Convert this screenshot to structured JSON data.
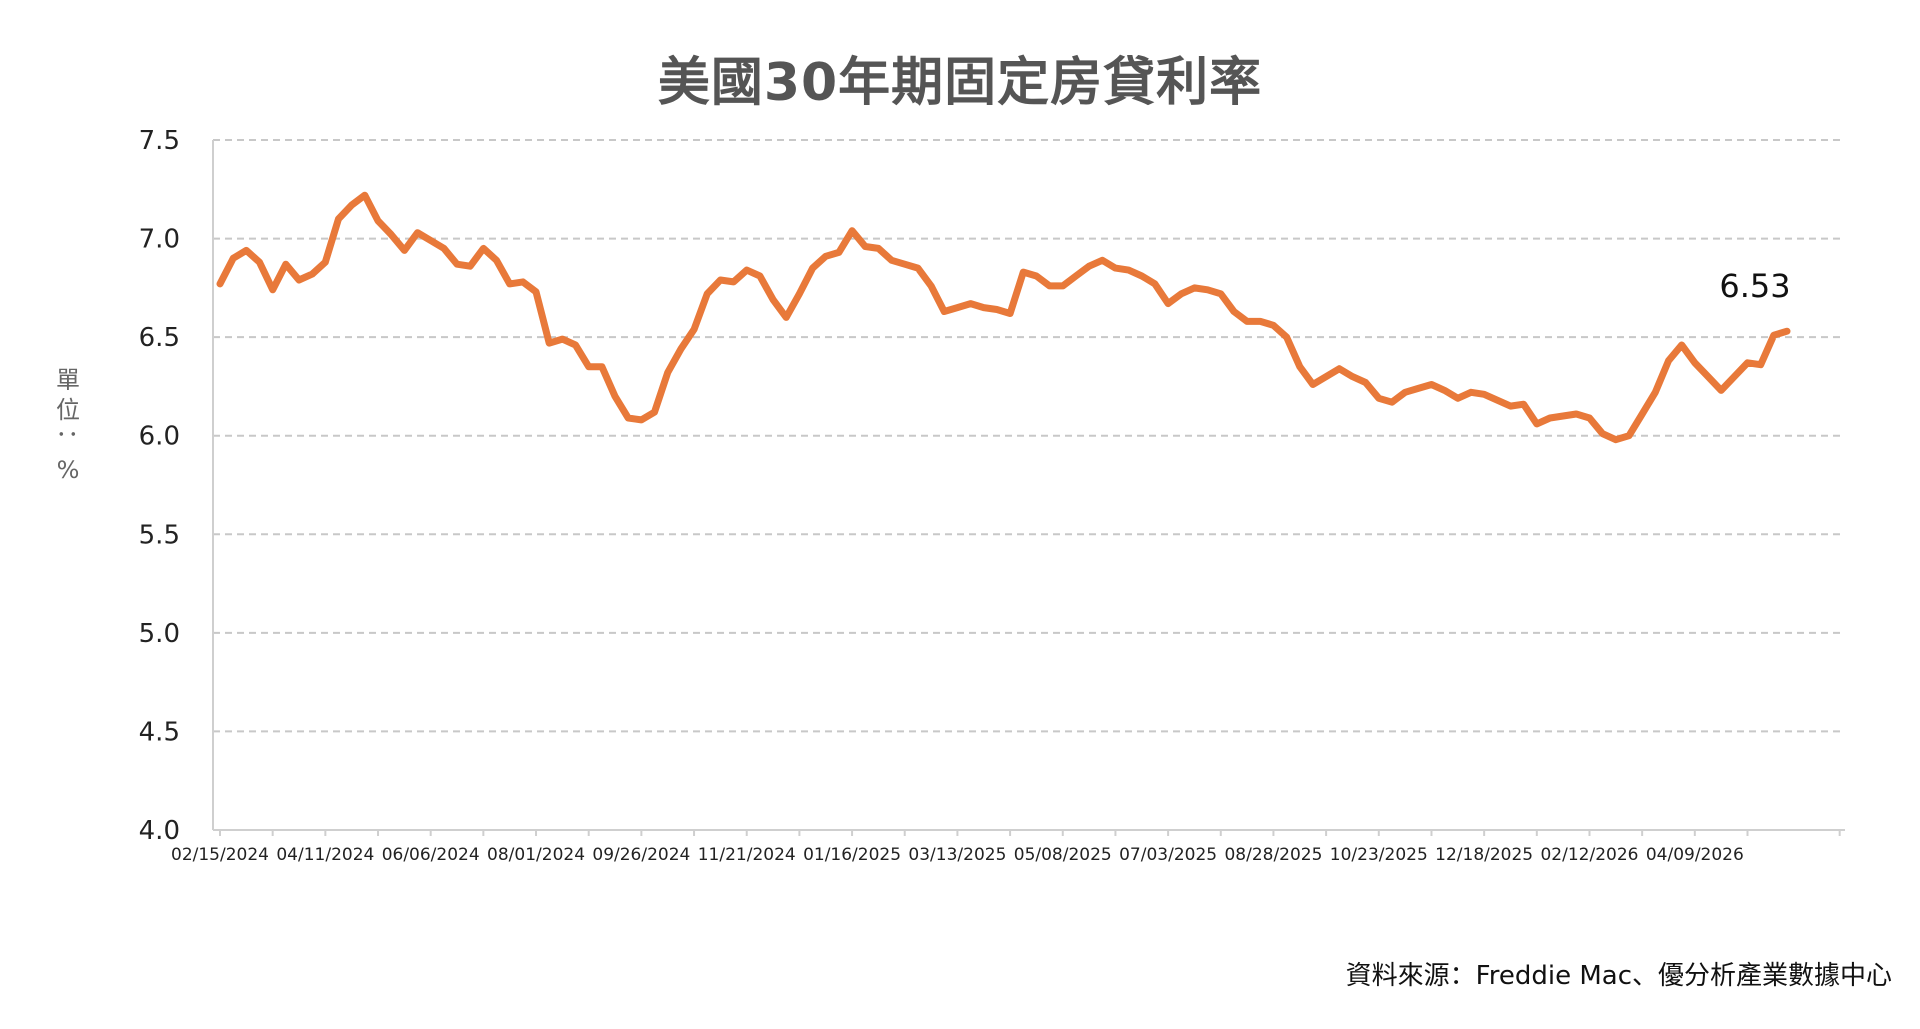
{
  "chart_data": {
    "type": "line",
    "title": "美國30年期固定房貸利率",
    "ylabel": "單位：%",
    "source": "資料來源：Freddie Mac、優分析產業數據中心",
    "ylim": [
      4.0,
      7.5
    ],
    "y_ticks": [
      "7.5",
      "7.0",
      "6.5",
      "6.0",
      "5.5",
      "5.0",
      "4.5",
      "4.0"
    ],
    "x_tick_labels": [
      "02/15/2024",
      "04/11/2024",
      "06/06/2024",
      "08/01/2024",
      "09/26/2024",
      "11/21/2024",
      "01/16/2025",
      "03/13/2025",
      "05/08/2025",
      "07/03/2025",
      "08/28/2025",
      "10/23/2025",
      "12/18/2025",
      "02/12/2026",
      "04/09/2026"
    ],
    "grid": true,
    "last_value_label": "6.53",
    "series": [
      {
        "color": "#E8793A",
        "values": [
          6.77,
          6.9,
          6.94,
          6.88,
          6.74,
          6.87,
          6.79,
          6.82,
          6.88,
          7.1,
          7.17,
          7.22,
          7.09,
          7.02,
          6.94,
          7.03,
          6.99,
          6.95,
          6.87,
          6.86,
          6.95,
          6.89,
          6.77,
          6.78,
          6.73,
          6.47,
          6.49,
          6.46,
          6.35,
          6.35,
          6.2,
          6.09,
          6.08,
          6.12,
          6.32,
          6.44,
          6.54,
          6.72,
          6.79,
          6.78,
          6.84,
          6.81,
          6.69,
          6.6,
          6.72,
          6.85,
          6.91,
          6.93,
          7.04,
          6.96,
          6.95,
          6.89,
          6.87,
          6.85,
          6.76,
          6.63,
          6.65,
          6.67,
          6.65,
          6.64,
          6.62,
          6.83,
          6.81,
          6.76,
          6.76,
          6.81,
          6.86,
          6.89,
          6.85,
          6.84,
          6.81,
          6.77,
          6.67,
          6.72,
          6.75,
          6.74,
          6.72,
          6.63,
          6.58,
          6.58,
          6.56,
          6.5,
          6.35,
          6.26,
          6.3,
          6.34,
          6.3,
          6.27,
          6.19,
          6.17,
          6.22,
          6.24,
          6.26,
          6.23,
          6.19,
          6.22,
          6.21,
          6.18,
          6.15,
          6.16,
          6.06,
          6.09,
          6.1,
          6.11,
          6.09,
          6.01,
          5.98,
          6.0,
          6.11,
          6.22,
          6.38,
          6.46,
          6.37,
          6.3,
          6.23,
          6.3,
          6.37,
          6.36,
          6.51,
          6.53
        ]
      }
    ]
  }
}
